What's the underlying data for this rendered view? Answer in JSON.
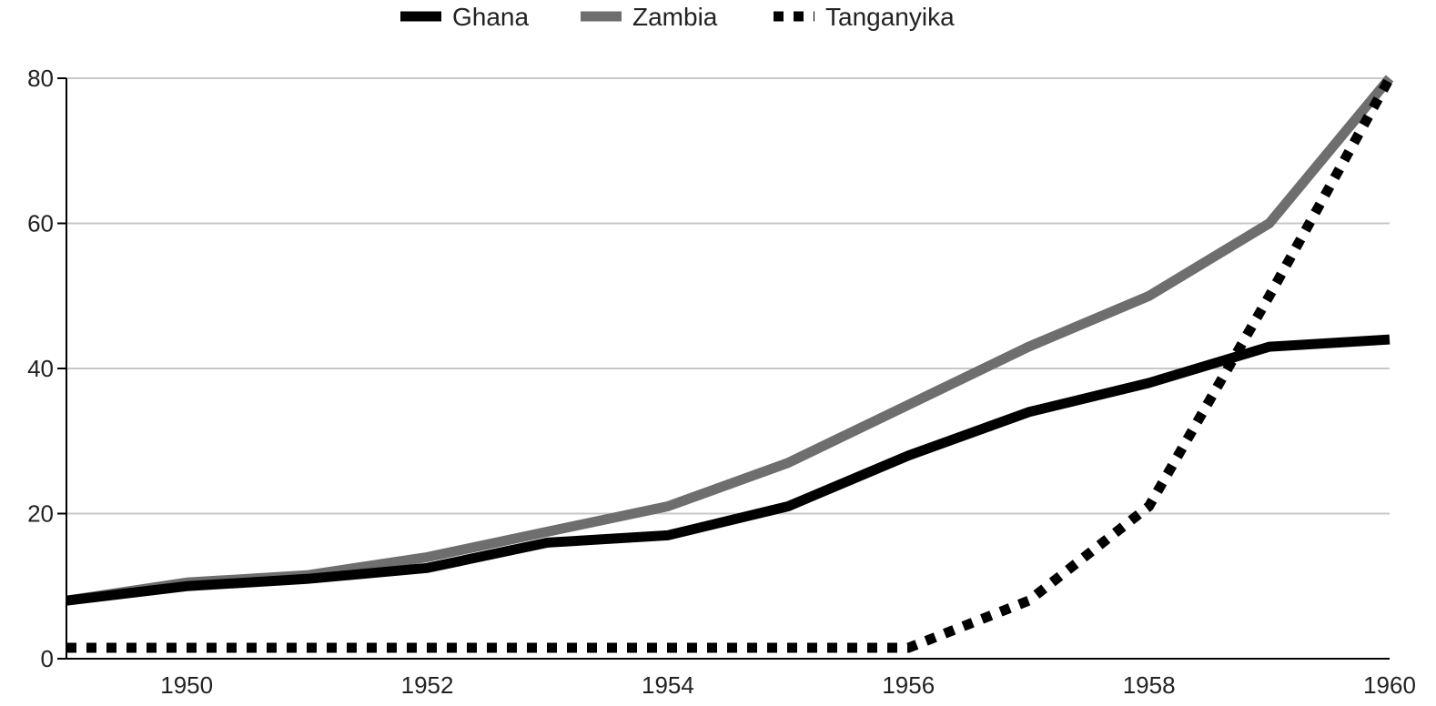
{
  "chart_data": {
    "type": "line",
    "title": "",
    "xlabel": "",
    "ylabel": "",
    "xlim": [
      1949,
      1960
    ],
    "ylim": [
      0,
      80
    ],
    "x_ticks": [
      "1950",
      "1952",
      "1954",
      "1956",
      "1958",
      "1960"
    ],
    "y_ticks": [
      "0",
      "20",
      "40",
      "60",
      "80"
    ],
    "grid": "horizontal",
    "legend_position": "top-center",
    "x": [
      1949,
      1950,
      1951,
      1952,
      1953,
      1954,
      1955,
      1956,
      1957,
      1958,
      1959,
      1960
    ],
    "series": [
      {
        "name": "Ghana",
        "color": "#000000",
        "style": "solid",
        "values": [
          8,
          10,
          11,
          12.5,
          16,
          17,
          21,
          28,
          34,
          38,
          43,
          44
        ]
      },
      {
        "name": "Zambia",
        "color": "#6e6e6e",
        "style": "solid",
        "values": [
          8,
          10.5,
          11.5,
          14,
          17.5,
          21,
          27,
          35,
          43,
          50,
          60,
          80
        ]
      },
      {
        "name": "Tanganyika",
        "color": "#000000",
        "style": "dotted",
        "values": [
          1.5,
          1.5,
          1.5,
          1.5,
          1.5,
          1.5,
          1.5,
          1.5,
          8,
          21,
          50,
          80
        ]
      }
    ]
  }
}
